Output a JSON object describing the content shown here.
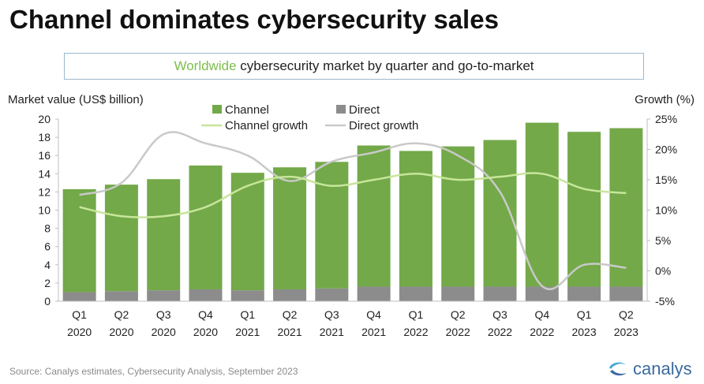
{
  "title": "Channel dominates cybersecurity sales",
  "subtitle_highlight": "Worldwide",
  "subtitle_rest": " cybersecurity market by quarter and go-to-market",
  "source": "Source: Canalys estimates, Cybersecurity Analysis, September 2023",
  "brand": "canalys",
  "colors": {
    "channel": "#73a949",
    "direct": "#8c8c8c",
    "channel_growth": "#c7e69a",
    "direct_growth": "#c9c9c9",
    "brand": "#3b6aa0"
  },
  "chart_data": {
    "type": "bar",
    "categories": [
      [
        "Q1",
        "2020"
      ],
      [
        "Q2",
        "2020"
      ],
      [
        "Q3",
        "2020"
      ],
      [
        "Q4",
        "2020"
      ],
      [
        "Q1",
        "2021"
      ],
      [
        "Q2",
        "2021"
      ],
      [
        "Q3",
        "2021"
      ],
      [
        "Q4",
        "2021"
      ],
      [
        "Q1",
        "2022"
      ],
      [
        "Q2",
        "2022"
      ],
      [
        "Q3",
        "2022"
      ],
      [
        "Q4",
        "2022"
      ],
      [
        "Q1",
        "2023"
      ],
      [
        "Q2",
        "2023"
      ]
    ],
    "series": [
      {
        "name": "Channel",
        "kind": "bar",
        "axis": "left",
        "values": [
          11.3,
          11.7,
          12.2,
          13.6,
          12.9,
          13.4,
          13.9,
          15.5,
          14.9,
          15.4,
          16.1,
          18.0,
          17.0,
          17.4
        ]
      },
      {
        "name": "Direct",
        "kind": "bar",
        "axis": "left",
        "values": [
          1.0,
          1.1,
          1.2,
          1.3,
          1.2,
          1.3,
          1.4,
          1.6,
          1.6,
          1.6,
          1.6,
          1.6,
          1.6,
          1.6
        ]
      },
      {
        "name": "Channel growth",
        "kind": "line",
        "axis": "right",
        "values": [
          10.5,
          9.0,
          9.0,
          10.5,
          14.0,
          15.5,
          14.0,
          15.0,
          16.0,
          15.0,
          15.5,
          16.0,
          13.5,
          12.8
        ]
      },
      {
        "name": "Direct growth",
        "kind": "line",
        "axis": "right",
        "values": [
          12.5,
          14.5,
          22.5,
          21.0,
          19.0,
          14.8,
          18.0,
          19.5,
          21.0,
          19.0,
          13.0,
          -2.5,
          1.0,
          0.5
        ]
      }
    ],
    "stacked": true,
    "ylabel": "Market value (US$ billion)",
    "y2label": "Growth (%)",
    "ylim": [
      0,
      20
    ],
    "yticks": [
      0,
      2,
      4,
      6,
      8,
      10,
      12,
      14,
      16,
      18,
      20
    ],
    "y2lim": [
      -5,
      25
    ],
    "y2ticks": [
      "-5%",
      "0%",
      "5%",
      "10%",
      "15%",
      "20%",
      "25%"
    ],
    "legend_placement": "top-center"
  }
}
